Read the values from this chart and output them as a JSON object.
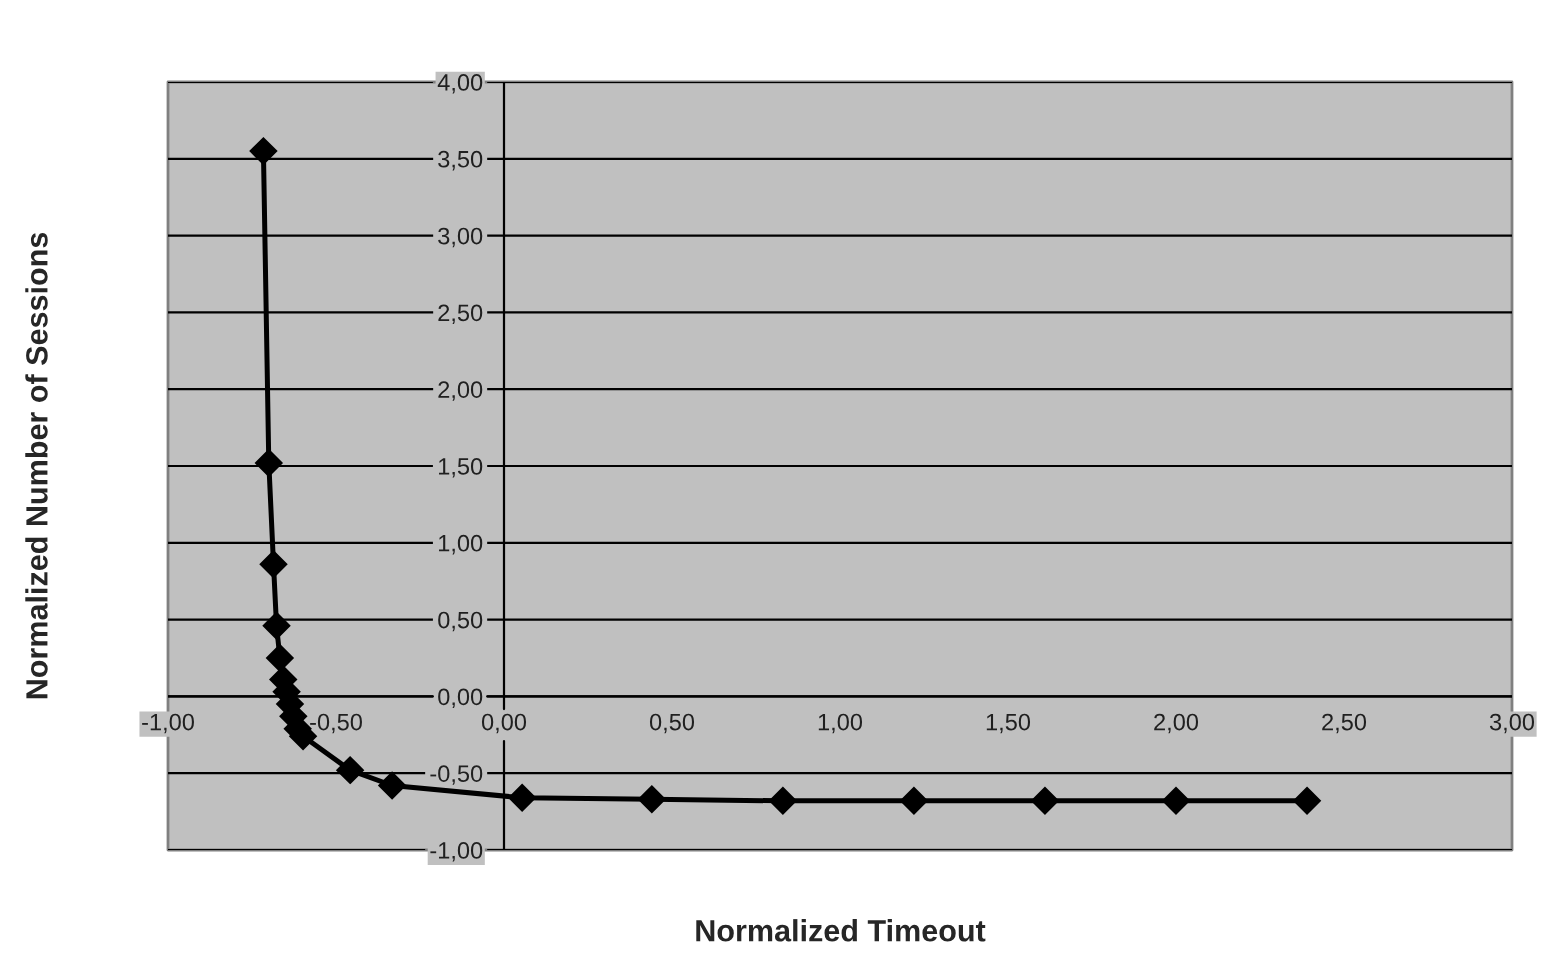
{
  "chart_data": {
    "type": "line",
    "xlabel": "Normalized Timeout",
    "ylabel": "Normalized Number of Sessions",
    "series": [
      {
        "color": "#000000",
        "x": [
          -0.716,
          -0.7,
          -0.686,
          -0.677,
          -0.667,
          -0.657,
          -0.647,
          -0.637,
          -0.627,
          -0.614,
          -0.598,
          -0.458,
          -0.333,
          0.054,
          0.44,
          0.83,
          1.22,
          1.61,
          2.0,
          2.39
        ],
        "values": [
          3.55,
          1.52,
          0.86,
          0.46,
          0.25,
          0.11,
          0.03,
          -0.05,
          -0.13,
          -0.21,
          -0.26,
          -0.48,
          -0.58,
          -0.66,
          -0.67,
          -0.68,
          -0.68,
          -0.68,
          -0.68,
          -0.68
        ]
      }
    ],
    "xlim": [
      -1,
      3
    ],
    "ylim": [
      -1,
      4
    ],
    "xticks": [
      {
        "value": -1,
        "label": "-1,00"
      },
      {
        "value": -0.5,
        "label": "-0,50"
      },
      {
        "value": 0,
        "label": "0,00"
      },
      {
        "value": 0.5,
        "label": "0,50"
      },
      {
        "value": 1,
        "label": "1,00"
      },
      {
        "value": 1.5,
        "label": "1,50"
      },
      {
        "value": 2,
        "label": "2,00"
      },
      {
        "value": 2.5,
        "label": "2,50"
      },
      {
        "value": 3,
        "label": "3,00"
      }
    ],
    "yticks": [
      {
        "value": -1,
        "label": "-1,00"
      },
      {
        "value": -0.5,
        "label": "-0,50"
      },
      {
        "value": 0,
        "label": "0,00"
      },
      {
        "value": 0.5,
        "label": "0,50"
      },
      {
        "value": 1,
        "label": "1,00"
      },
      {
        "value": 1.5,
        "label": "1,50"
      },
      {
        "value": 2,
        "label": "2,00"
      },
      {
        "value": 2.5,
        "label": "2,50"
      },
      {
        "value": 3,
        "label": "3,00"
      },
      {
        "value": 3.5,
        "label": "3,50"
      },
      {
        "value": 4,
        "label": "4,00"
      }
    ],
    "grid": "y",
    "marker": "diamond",
    "line_style": "solid",
    "legend": false
  }
}
